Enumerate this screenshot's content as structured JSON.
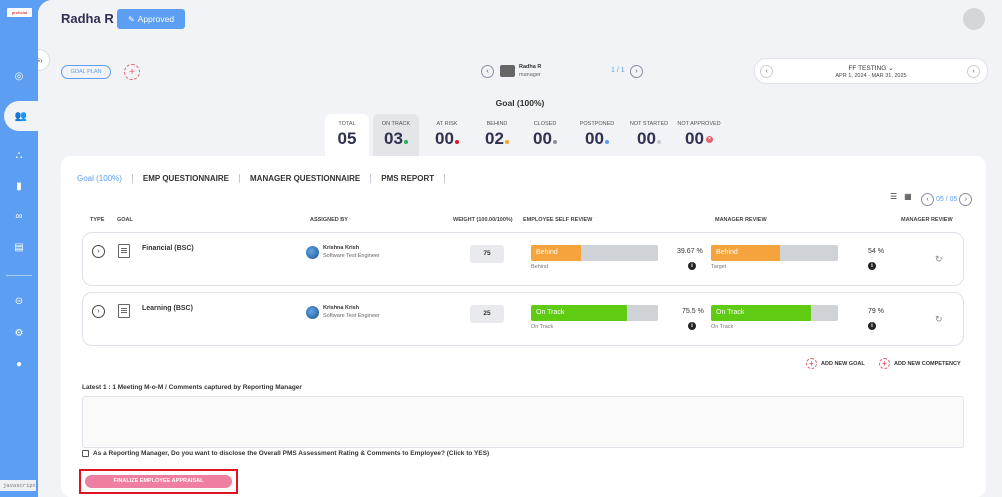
{
  "app": {
    "logo_text": "proficial",
    "javascript_label": "javascript:"
  },
  "header": {
    "user_name": "Radha R",
    "status_badge": "Approved"
  },
  "toolbar": {
    "goal_plan_label": "GOAL PLAN",
    "manager_name": "Radha R",
    "manager_role": "manager",
    "manager_count": "1 / 1",
    "cycle_name": "FF TESTING",
    "cycle_dates": "APR 1, 2024 - MAR 31, 2025"
  },
  "summary": {
    "title": "Goal (100%)",
    "stats": [
      {
        "label": "TOTAL",
        "value": "05"
      },
      {
        "label": "ON TRACK",
        "value": "03",
        "dot": "#23b35a"
      },
      {
        "label": "AT RISK",
        "value": "00",
        "dot": "#e0141e"
      },
      {
        "label": "BEHIND",
        "value": "02",
        "dot": "#f5a623"
      },
      {
        "label": "CLOSED",
        "value": "00",
        "dot": "#8a8fa3"
      },
      {
        "label": "POSTPONED",
        "value": "00",
        "dot": "#5b9ef2"
      },
      {
        "label": "NOT STARTED",
        "value": "00",
        "dot": "#c5c8d0"
      },
      {
        "label": "NOT APPROVED",
        "value": "00",
        "dot": "#e4606d"
      }
    ]
  },
  "tabs": [
    "Goal (100%)",
    "EMP QUESTIONNAIRE",
    "MANAGER QUESTIONNAIRE",
    "PMS REPORT"
  ],
  "pager": {
    "text": "05 / 05"
  },
  "table": {
    "headers": {
      "type": "TYPE",
      "goal": "GOAL",
      "assigned_by": "ASSIGNED BY",
      "weight": "WEIGHT (100.00/100%)",
      "self_review": "EMPLOYEE SELF REVIEW",
      "manager_review": "MANAGER REVIEW",
      "manager_review2": "MANAGER REVIEW"
    },
    "rows": [
      {
        "goal": "Financial (BSC)",
        "assignee_name": "Krishna Krish",
        "assignee_role": "Software Test Engineer",
        "weight": "75",
        "self_status": "Behind",
        "self_fill": 0.39,
        "self_color": "#f5a33c",
        "self_sub": "Behind",
        "self_pct": "39.67 %",
        "mgr_status": "Behind",
        "mgr_fill": 0.54,
        "mgr_color": "#f5a33c",
        "mgr_sub": "Target",
        "mgr_pct": "54 %"
      },
      {
        "goal": "Learning (BSC)",
        "assignee_name": "Krishna Krish",
        "assignee_role": "Software Test Engineer",
        "weight": "25",
        "self_status": "On Track",
        "self_fill": 0.755,
        "self_color": "#5fcb12",
        "self_sub": "On Track",
        "self_pct": "75.5 %",
        "mgr_status": "On Track",
        "mgr_fill": 0.79,
        "mgr_color": "#5fcb12",
        "mgr_sub": "On Track",
        "mgr_pct": "79 %"
      }
    ]
  },
  "actions": {
    "add_goal": "ADD NEW GOAL",
    "add_competency": "ADD NEW COMPETENCY"
  },
  "meeting": {
    "label": "Latest 1 : 1 Meeting M-o-M / Comments captured by Reporting Manager"
  },
  "disclosure": {
    "label": "As a Reporting Manager, Do you want to disclose the Overall PMS Assessment Rating & Comments to Employee? (Click to YES)"
  },
  "finalize": {
    "label": "FINALIZE EMPLOYEE APPRAISAL"
  }
}
